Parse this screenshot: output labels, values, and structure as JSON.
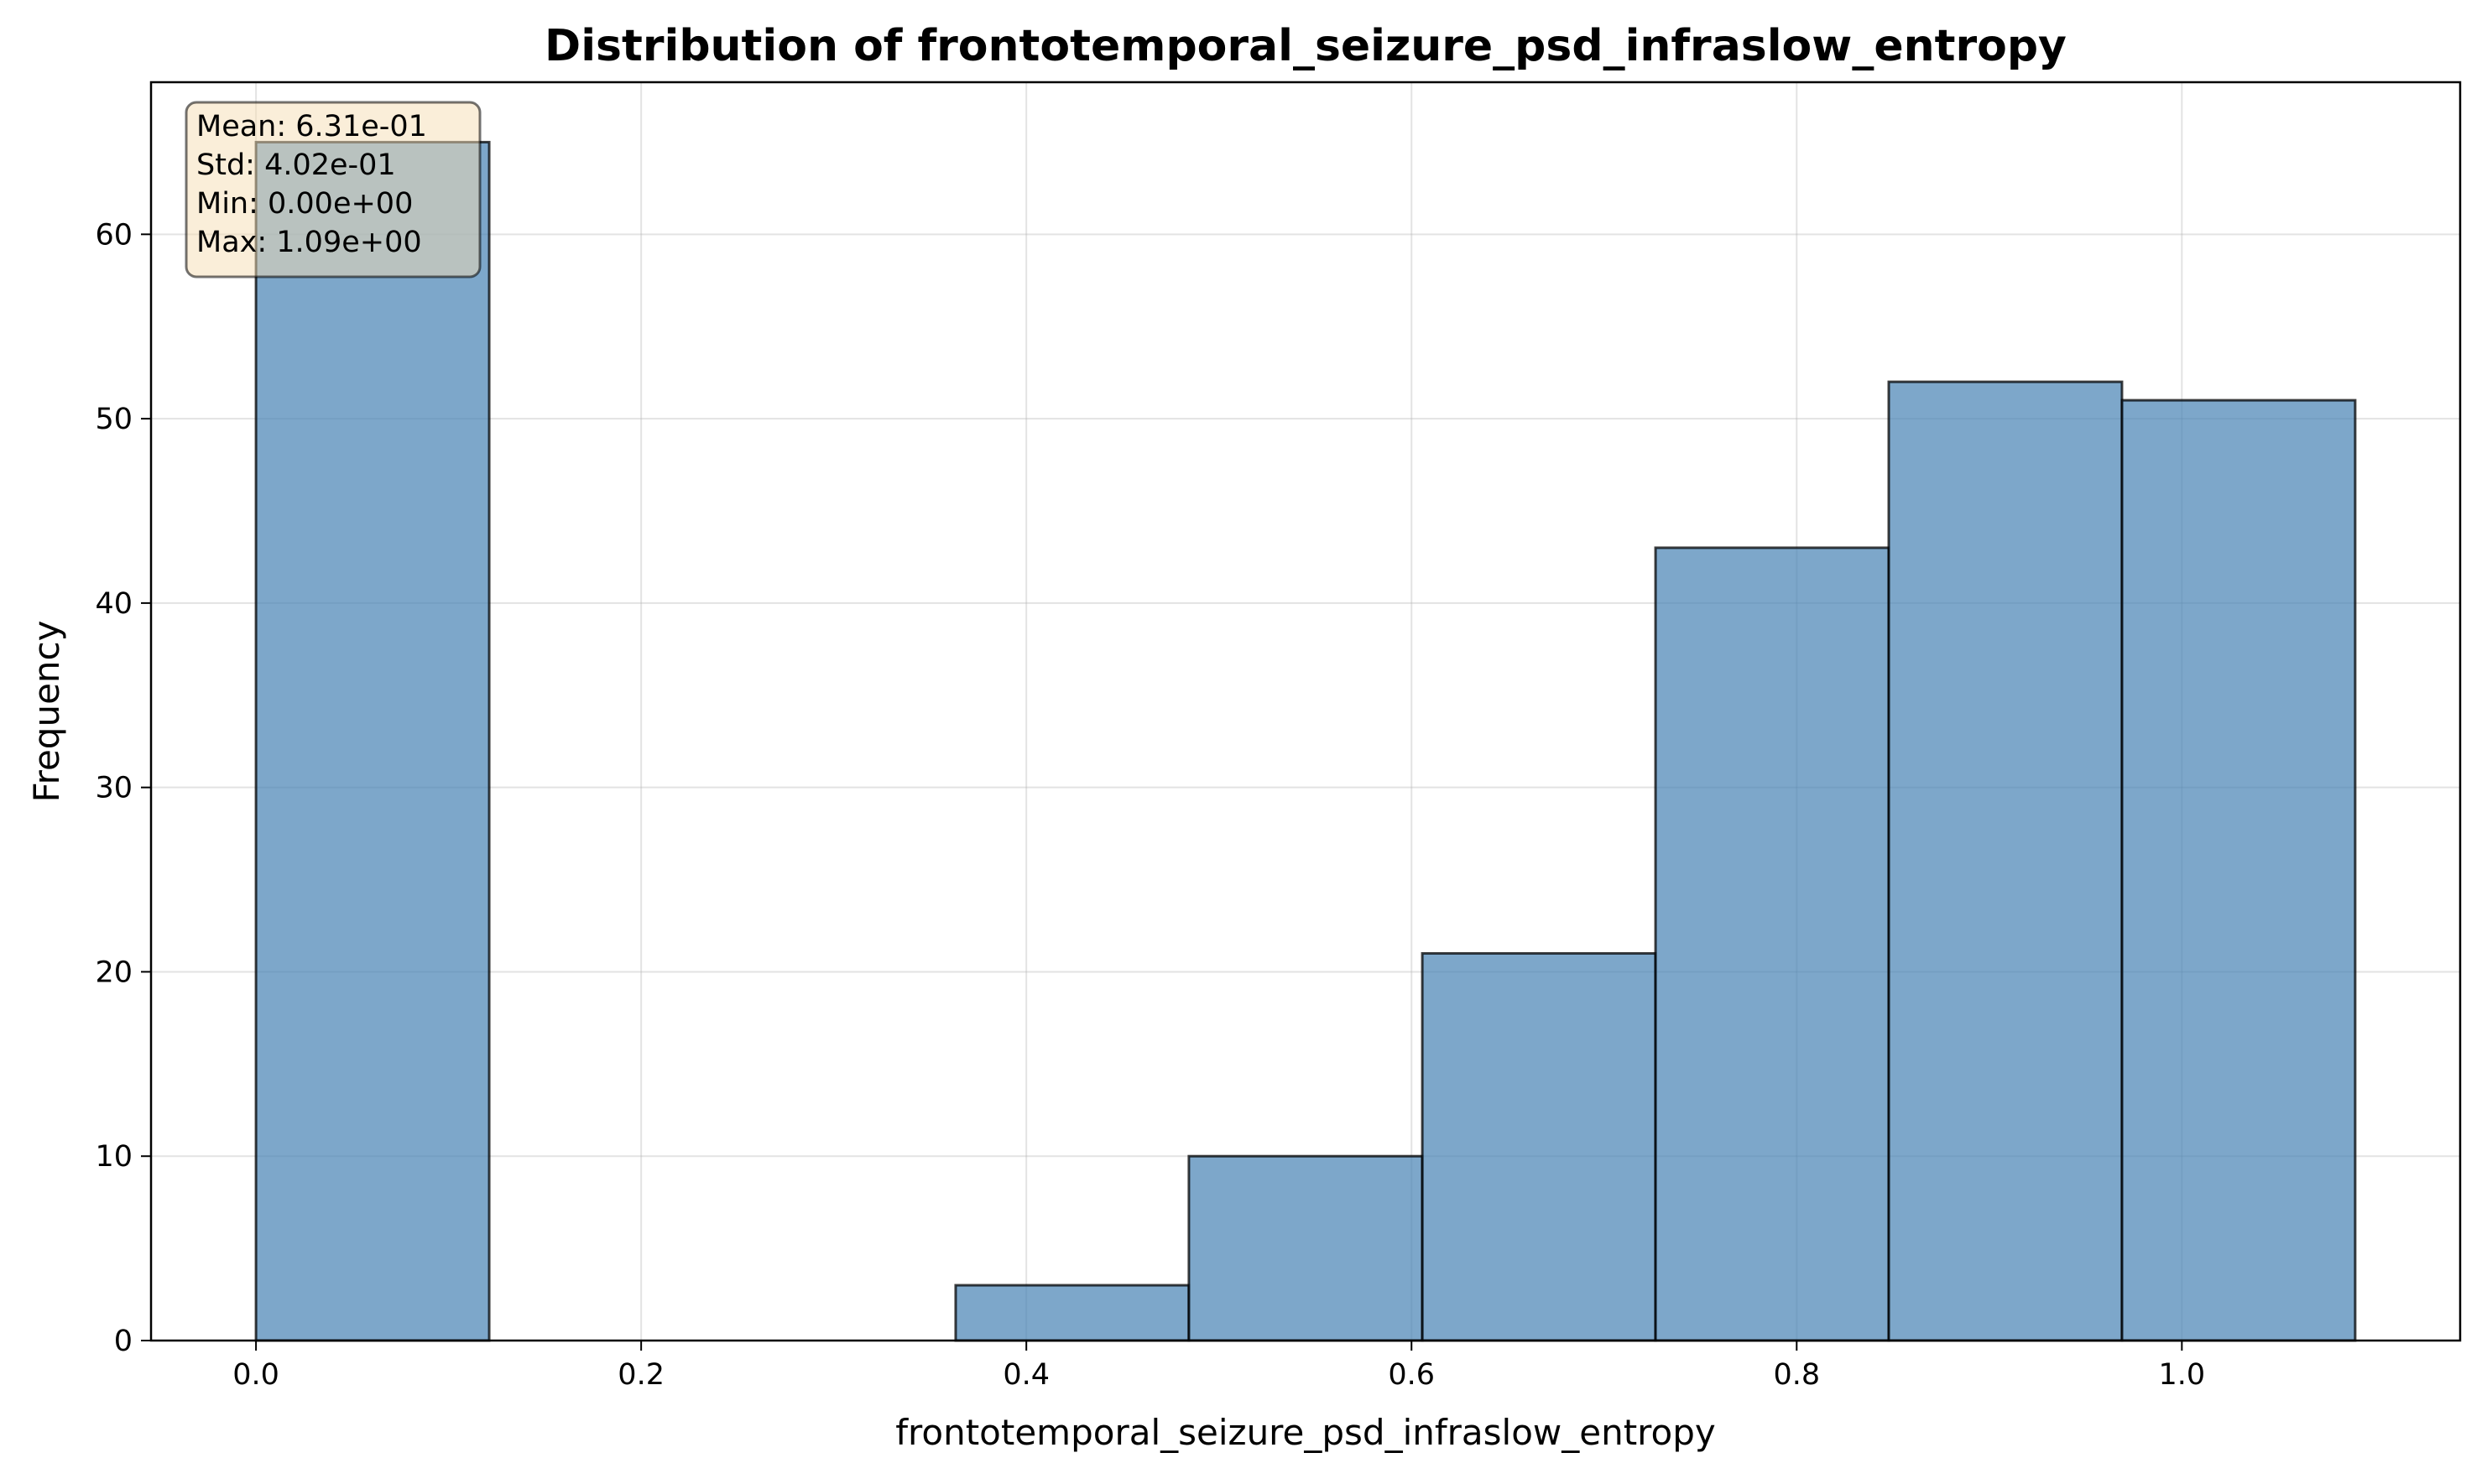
{
  "chart_data": {
    "type": "bar",
    "title": "Distribution of frontotemporal_seizure_psd_infraslow_entropy",
    "xlabel": "frontotemporal_seizure_psd_infraslow_entropy",
    "ylabel": "Frequency",
    "xlim": [
      -0.0545,
      1.1445
    ],
    "ylim": [
      0,
      68.25
    ],
    "x_ticks": [
      0.0,
      0.2,
      0.4,
      0.6,
      0.8,
      1.0
    ],
    "x_tick_labels": [
      "0.0",
      "0.2",
      "0.4",
      "0.6",
      "0.8",
      "1.0"
    ],
    "y_ticks": [
      0,
      10,
      20,
      30,
      40,
      50,
      60
    ],
    "y_tick_labels": [
      "0",
      "10",
      "20",
      "30",
      "40",
      "50",
      "60"
    ],
    "bin_edges": [
      0.0,
      0.1211,
      0.2422,
      0.3633,
      0.4844,
      0.6056,
      0.7267,
      0.8478,
      0.9689,
      1.09
    ],
    "values": [
      65,
      0,
      0,
      3,
      10,
      21,
      43,
      52,
      51
    ],
    "grid": true,
    "bar_color": "#4682b4",
    "edge_color": "#000000",
    "stats_box": {
      "position": "top-left",
      "background": "#f5deb3",
      "lines": [
        "Mean: 6.31e-01",
        "Std: 4.02e-01",
        "Min: 0.00e+00",
        "Max: 1.09e+00"
      ]
    }
  }
}
